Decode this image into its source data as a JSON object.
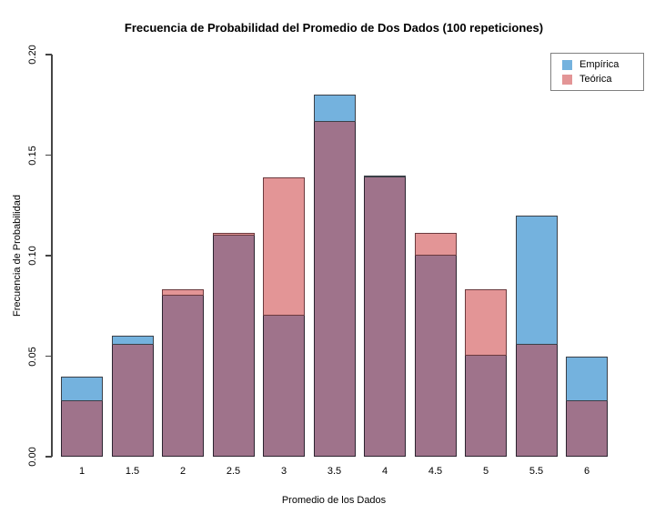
{
  "chart_data": {
    "type": "bar",
    "title": "Frecuencia de Probabilidad del Promedio de Dos Dados (100 repeticiones)",
    "xlabel": "Promedio de los Dados",
    "ylabel": "Frecuencia de Probabilidad",
    "categories": [
      "1",
      "1.5",
      "2",
      "2.5",
      "3",
      "3.5",
      "4",
      "4.5",
      "5",
      "5.5",
      "6"
    ],
    "series": [
      {
        "name": "Empírica",
        "values": [
          0.04,
          0.06,
          0.08,
          0.11,
          0.07,
          0.18,
          0.14,
          0.1,
          0.05,
          0.12,
          0.05
        ],
        "color": "#74b2de",
        "border_color": "#3b4048"
      },
      {
        "name": "Teórica",
        "values": [
          0.0278,
          0.0556,
          0.0833,
          0.1111,
          0.1389,
          0.1667,
          0.1389,
          0.1111,
          0.0833,
          0.0556,
          0.0278
        ],
        "color": "#e39596",
        "border_color": "#6b3a3e"
      }
    ],
    "overlap_color": "#9f738b",
    "overlap_border_color": "#2c2430",
    "ylim": [
      0,
      0.2
    ],
    "yticks": [
      {
        "value": 0.0,
        "label": "0.00"
      },
      {
        "value": 0.05,
        "label": "0.05"
      },
      {
        "value": 0.1,
        "label": "0.10"
      },
      {
        "value": 0.15,
        "label": "0.15"
      },
      {
        "value": 0.2,
        "label": "0.20"
      }
    ],
    "legend_position": "top-right",
    "grid": false,
    "axis_color": "#454545",
    "background_color": "#ffffff"
  }
}
